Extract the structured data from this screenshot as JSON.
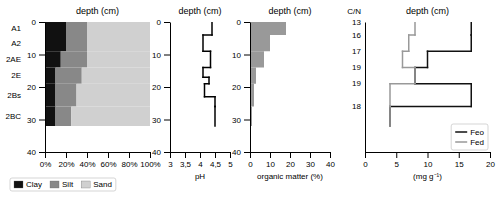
{
  "chart_data": [
    {
      "type": "bar",
      "orientation": "horizontal",
      "stacked": true,
      "title": "depth (cm)",
      "categories": [
        "A1",
        "A2",
        "2AE",
        "2E",
        "2Bs",
        "2BC"
      ],
      "tops": [
        0,
        4,
        9,
        14,
        19,
        26
      ],
      "bottoms": [
        4,
        9,
        14,
        19,
        26,
        32
      ],
      "series": [
        {
          "name": "Clay",
          "color": "#111111",
          "values": [
            20,
            20,
            15,
            10,
            10,
            10
          ]
        },
        {
          "name": "Silt",
          "color": "#888888",
          "values": [
            20,
            20,
            25,
            25,
            20,
            15
          ]
        },
        {
          "name": "Sand",
          "color": "#d0d0d0",
          "values": [
            60,
            60,
            60,
            65,
            70,
            75
          ]
        }
      ],
      "xlim": [
        0,
        100
      ],
      "xticks": [
        {
          "value": 0,
          "label": "0%"
        },
        {
          "value": 20,
          "label": "20%"
        },
        {
          "value": 40,
          "label": "40%"
        },
        {
          "value": 60,
          "label": "60%"
        },
        {
          "value": 80,
          "label": "80%"
        },
        {
          "value": 100,
          "label": "100%"
        }
      ],
      "ylim": [
        40,
        0
      ],
      "yticks": [
        0,
        10,
        20,
        30,
        40
      ],
      "legend": "bottom"
    },
    {
      "type": "step",
      "title": "depth (cm)",
      "x_label": "pH",
      "tops": [
        0,
        4,
        9,
        14,
        17,
        19,
        23,
        26
      ],
      "bottoms": [
        4,
        9,
        14,
        17,
        19,
        23,
        26,
        32
      ],
      "values": [
        4.4,
        4.1,
        4.35,
        4.1,
        4.3,
        4.15,
        4.5,
        4.5
      ],
      "color": "#000000",
      "xlim": [
        3,
        5
      ],
      "xticks": [
        3,
        {
          "value": 3.5,
          "label": "3,5"
        },
        4,
        {
          "value": 4.5,
          "label": "4,5"
        },
        5
      ],
      "ylim": [
        40,
        0
      ],
      "yticks": [
        0,
        10,
        20,
        30,
        40
      ]
    },
    {
      "type": "bar",
      "orientation": "horizontal",
      "title": "depth (cm)",
      "x_label": "organic matter (%)",
      "tops": [
        0,
        4,
        9,
        14,
        19,
        26
      ],
      "bottoms": [
        4,
        9,
        14,
        19,
        26,
        32
      ],
      "values": [
        18,
        10,
        7,
        3,
        2,
        1
      ],
      "color": "#999999",
      "xlim": [
        0,
        40
      ],
      "xticks": [
        0,
        10,
        20,
        30,
        40
      ],
      "ylim": [
        40,
        0
      ],
      "yticks": [
        0,
        10,
        20,
        30,
        40
      ]
    },
    {
      "type": "step",
      "title": "depth (cm)",
      "x_label": "(mg g⁻¹)",
      "tops": [
        0,
        4,
        9,
        14,
        19,
        26
      ],
      "bottoms": [
        4,
        9,
        14,
        19,
        26,
        32
      ],
      "series": [
        {
          "name": "Feo",
          "color": "#111111",
          "values": [
            17,
            17,
            10,
            8,
            17,
            4
          ]
        },
        {
          "name": "Fed",
          "color": "#999999",
          "values": [
            8,
            7,
            6,
            8,
            4,
            4
          ]
        }
      ],
      "xlim": [
        0,
        20
      ],
      "xticks": [
        0,
        5,
        10,
        15,
        20
      ],
      "ylim": [
        40,
        0
      ],
      "tick_labels": "x",
      "legend": "lower right",
      "cn_title": "C/N",
      "cn_values": [
        13,
        16,
        17,
        19,
        19,
        18
      ]
    }
  ]
}
